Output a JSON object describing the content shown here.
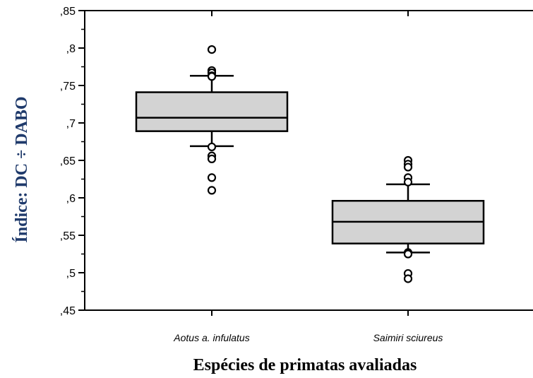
{
  "chart_data": {
    "type": "boxplot",
    "title": "",
    "xlabel": "Espécies de primatas avaliadas",
    "ylabel": "Índice:   DC  ÷  DABO",
    "ylim": [
      0.45,
      0.85
    ],
    "yticks": [
      ",45",
      ",5",
      ",55",
      ",6",
      ",65",
      ",7",
      ",75",
      ",8",
      ",85"
    ],
    "ytick_values": [
      0.45,
      0.5,
      0.55,
      0.6,
      0.65,
      0.7,
      0.75,
      0.8,
      0.85
    ],
    "categories": [
      "Aotus a. infulatus",
      "Saimiri sciureus"
    ],
    "boxes": [
      {
        "category": "Aotus a. infulatus",
        "whisker_low": 0.669,
        "q1": 0.689,
        "median": 0.707,
        "q3": 0.741,
        "whisker_high": 0.763,
        "outliers": [
          0.798,
          0.77,
          0.767,
          0.763,
          0.762,
          0.668,
          0.656,
          0.652,
          0.627,
          0.61
        ]
      },
      {
        "category": "Saimiri sciureus",
        "whisker_low": 0.527,
        "q1": 0.539,
        "median": 0.568,
        "q3": 0.596,
        "whisker_high": 0.618,
        "outliers": [
          0.65,
          0.645,
          0.641,
          0.627,
          0.621,
          0.527,
          0.525,
          0.499,
          0.492
        ]
      }
    ],
    "colors": {
      "box_fill": "#d3d3d3",
      "stroke": "#000000",
      "ylabel_color": "#1f3a6b"
    },
    "grid": false,
    "legend": "none"
  }
}
